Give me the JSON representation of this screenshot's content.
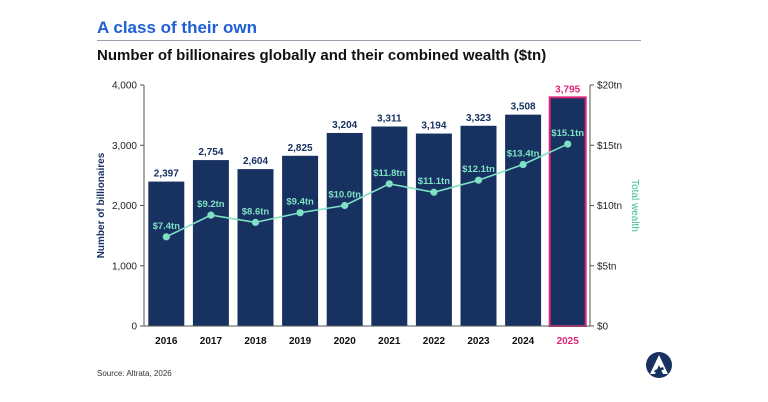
{
  "header": {
    "headline": "A class of their own",
    "subtitle": "Number of billionaires globally and their combined wealth ($tn)"
  },
  "footer": {
    "source": "Source: Altrata, 2026"
  },
  "colors": {
    "headline": "#1f5fd6",
    "bar": "#173261",
    "bar_highlight_border": "#e0247a",
    "highlight_text": "#e0247a",
    "wealth_line": "#7fe0c4",
    "axis_right_label": "#3cbf92"
  },
  "chart_data": {
    "type": "bar",
    "categories": [
      "2016",
      "2017",
      "2018",
      "2019",
      "2020",
      "2021",
      "2022",
      "2023",
      "2024",
      "2025"
    ],
    "highlight_category": "2025",
    "series": [
      {
        "name": "Number of billionaires",
        "axis": "left",
        "values": [
          2397,
          2754,
          2604,
          2825,
          3204,
          3311,
          3194,
          3323,
          3508,
          3795
        ],
        "labels": [
          "2,397",
          "2,754",
          "2,604",
          "2,825",
          "3,204",
          "3,311",
          "3,194",
          "3,323",
          "3,508",
          "3,795"
        ]
      },
      {
        "name": "Total wealth",
        "axis": "right",
        "type": "line",
        "values": [
          7.4,
          9.2,
          8.6,
          9.4,
          10.0,
          11.8,
          11.1,
          12.1,
          13.4,
          15.1
        ],
        "labels": [
          "$7.4tn",
          "$9.2tn",
          "$8.6tn",
          "$9.4tn",
          "$10.0tn",
          "$11.8tn",
          "$11.1tn",
          "$12.1tn",
          "$13.4tn",
          "$15.1tn"
        ]
      }
    ],
    "ylabel": "Number of billionaires",
    "ylabel_right": "Total wealth",
    "ylim": [
      0,
      4000
    ],
    "ylim_right": [
      0,
      20
    ],
    "yticks": [
      "0",
      "1,000",
      "2,000",
      "3,000",
      "4,000"
    ],
    "yticks_right": [
      "$0",
      "$5tn",
      "$10tn",
      "$15tn",
      "$20tn"
    ],
    "grid": false,
    "legend": "none"
  }
}
